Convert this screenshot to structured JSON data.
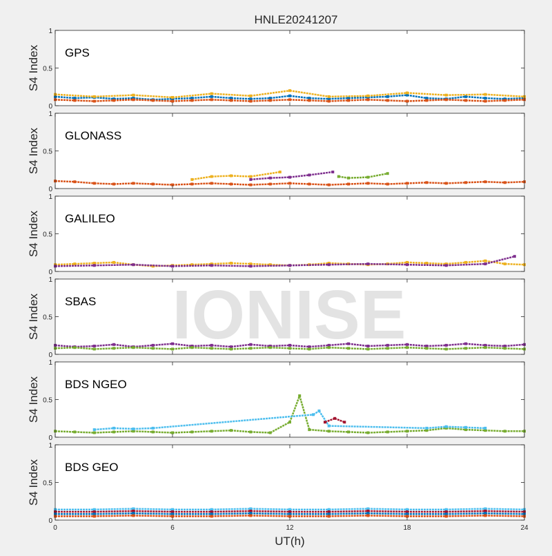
{
  "figure": {
    "title": "HNLE20241207",
    "watermark": "IONISE",
    "xlabel": "UT(h)",
    "ylabel": "S4 Index",
    "x_ticks": [
      "0",
      "6",
      "12",
      "18",
      "24"
    ],
    "y_ticks": [
      "0",
      "0.5",
      "1"
    ]
  },
  "colors": {
    "background": "#f0f0f0",
    "axes": "#ffffff",
    "series": [
      "#0072BD",
      "#D95319",
      "#EDB120",
      "#7E2F8E",
      "#77AC30",
      "#4DBEEE",
      "#A2142F"
    ]
  },
  "chart_data": [
    {
      "type": "scatter",
      "panel_label": "GPS",
      "xlim": [
        0,
        24
      ],
      "ylim": [
        0,
        1
      ],
      "series": [
        {
          "x": [
            0,
            1,
            2,
            3,
            4,
            5,
            6,
            7,
            8,
            9,
            10,
            11,
            12,
            13,
            14,
            15,
            16,
            17,
            18,
            19,
            20,
            21,
            22,
            23,
            24
          ],
          "y": [
            0.12,
            0.1,
            0.11,
            0.09,
            0.1,
            0.08,
            0.09,
            0.1,
            0.12,
            0.1,
            0.09,
            0.1,
            0.13,
            0.1,
            0.09,
            0.1,
            0.11,
            0.12,
            0.14,
            0.1,
            0.09,
            0.12,
            0.1,
            0.09,
            0.1
          ]
        },
        {
          "x": [
            0,
            1,
            2,
            3,
            4,
            5,
            6,
            7,
            8,
            9,
            10,
            11,
            12,
            13,
            14,
            15,
            16,
            17,
            18,
            19,
            20,
            21,
            22,
            23,
            24
          ],
          "y": [
            0.08,
            0.07,
            0.06,
            0.07,
            0.08,
            0.07,
            0.06,
            0.07,
            0.08,
            0.07,
            0.06,
            0.07,
            0.08,
            0.07,
            0.06,
            0.07,
            0.08,
            0.07,
            0.06,
            0.07,
            0.08,
            0.07,
            0.06,
            0.07,
            0.08
          ]
        },
        {
          "x": [
            0,
            2,
            4,
            6,
            8,
            10,
            12,
            14,
            16,
            18,
            20,
            22,
            24
          ],
          "y": [
            0.15,
            0.12,
            0.14,
            0.11,
            0.16,
            0.13,
            0.2,
            0.12,
            0.13,
            0.17,
            0.14,
            0.15,
            0.12
          ]
        }
      ]
    },
    {
      "type": "scatter",
      "panel_label": "GLONASS",
      "xlim": [
        0,
        24
      ],
      "ylim": [
        0,
        1
      ],
      "series": [
        {
          "x": [
            0,
            1,
            2,
            3,
            4,
            5,
            6,
            7,
            8,
            9,
            10,
            11,
            12,
            13,
            14,
            15,
            16,
            17,
            18,
            19,
            20,
            21,
            22,
            23,
            24
          ],
          "y": [
            0.1,
            0.09,
            0.07,
            0.06,
            0.07,
            0.06,
            0.05,
            0.06,
            0.07,
            0.06,
            0.05,
            0.06,
            0.07,
            0.06,
            0.05,
            0.06,
            0.07,
            0.06,
            0.07,
            0.08,
            0.07,
            0.08,
            0.09,
            0.08,
            0.09
          ]
        },
        {
          "x": [
            7,
            8,
            9,
            10,
            11.5
          ],
          "y": [
            0.12,
            0.16,
            0.17,
            0.16,
            0.22
          ]
        },
        {
          "x": [
            10,
            11,
            12,
            13,
            14.2
          ],
          "y": [
            0.12,
            0.14,
            0.15,
            0.18,
            0.22
          ]
        },
        {
          "x": [
            14.5,
            15,
            16,
            17
          ],
          "y": [
            0.16,
            0.14,
            0.15,
            0.2
          ]
        }
      ]
    },
    {
      "type": "scatter",
      "panel_label": "GALILEO",
      "xlim": [
        0,
        24
      ],
      "ylim": [
        0,
        1
      ],
      "series": [
        {
          "x": [
            0,
            1,
            2,
            3,
            4,
            5,
            6,
            7,
            8,
            9,
            10,
            11,
            12,
            13,
            14,
            15,
            16,
            17,
            18,
            19,
            20,
            21,
            22,
            23,
            24
          ],
          "y": [
            0.09,
            0.1,
            0.11,
            0.12,
            0.09,
            0.07,
            0.08,
            0.09,
            0.1,
            0.11,
            0.1,
            0.09,
            0.08,
            0.09,
            0.11,
            0.1,
            0.09,
            0.1,
            0.12,
            0.11,
            0.1,
            0.12,
            0.14,
            0.1,
            0.09
          ]
        },
        {
          "x": [
            0,
            2,
            4,
            6,
            8,
            10,
            12,
            14,
            16,
            18,
            20,
            22,
            23.5
          ],
          "y": [
            0.07,
            0.08,
            0.09,
            0.07,
            0.08,
            0.07,
            0.08,
            0.09,
            0.1,
            0.09,
            0.08,
            0.1,
            0.2
          ]
        }
      ]
    },
    {
      "type": "scatter",
      "panel_label": "SBAS",
      "xlim": [
        0,
        24
      ],
      "ylim": [
        0,
        1
      ],
      "series": [
        {
          "x": [
            0,
            1,
            2,
            3,
            4,
            5,
            6,
            7,
            8,
            9,
            10,
            11,
            12,
            13,
            14,
            15,
            16,
            17,
            18,
            19,
            20,
            21,
            22,
            23,
            24
          ],
          "y": [
            0.12,
            0.1,
            0.11,
            0.13,
            0.1,
            0.12,
            0.14,
            0.11,
            0.12,
            0.1,
            0.13,
            0.11,
            0.12,
            0.1,
            0.12,
            0.14,
            0.11,
            0.12,
            0.13,
            0.11,
            0.12,
            0.14,
            0.12,
            0.11,
            0.13
          ]
        },
        {
          "x": [
            0,
            1,
            2,
            3,
            4,
            5,
            6,
            7,
            8,
            9,
            10,
            11,
            12,
            13,
            14,
            15,
            16,
            17,
            18,
            19,
            20,
            21,
            22,
            23,
            24
          ],
          "y": [
            0.08,
            0.09,
            0.07,
            0.08,
            0.09,
            0.08,
            0.07,
            0.09,
            0.08,
            0.07,
            0.08,
            0.09,
            0.08,
            0.07,
            0.09,
            0.08,
            0.07,
            0.08,
            0.09,
            0.08,
            0.07,
            0.08,
            0.09,
            0.08,
            0.07
          ]
        }
      ]
    },
    {
      "type": "scatter",
      "panel_label": "BDS NGEO",
      "xlim": [
        0,
        24
      ],
      "ylim": [
        0,
        1
      ],
      "series": [
        {
          "x": [
            0,
            1,
            2,
            3,
            4,
            5,
            6,
            7,
            8,
            9,
            10,
            11,
            12,
            12.5,
            13,
            14,
            15,
            16,
            17,
            18,
            19,
            20,
            21,
            22,
            23,
            24
          ],
          "y": [
            0.08,
            0.07,
            0.06,
            0.07,
            0.08,
            0.07,
            0.06,
            0.07,
            0.08,
            0.09,
            0.07,
            0.06,
            0.2,
            0.55,
            0.1,
            0.08,
            0.07,
            0.06,
            0.07,
            0.08,
            0.09,
            0.12,
            0.1,
            0.09,
            0.08,
            0.08
          ]
        },
        {
          "x": [
            2,
            3,
            4,
            5,
            13.2,
            13.5,
            14,
            19,
            20,
            21,
            22
          ],
          "y": [
            0.1,
            0.12,
            0.11,
            0.12,
            0.3,
            0.35,
            0.15,
            0.12,
            0.14,
            0.13,
            0.12
          ]
        },
        {
          "x": [
            13.8,
            14.3,
            14.8
          ],
          "y": [
            0.2,
            0.25,
            0.2
          ]
        }
      ]
    },
    {
      "type": "scatter",
      "panel_label": "BDS GEO",
      "xlim": [
        0,
        24
      ],
      "ylim": [
        0,
        1
      ],
      "series": [
        {
          "x": [
            0,
            2,
            4,
            6,
            8,
            10,
            12,
            14,
            16,
            18,
            20,
            22,
            24
          ],
          "y": [
            0.14,
            0.14,
            0.15,
            0.14,
            0.14,
            0.15,
            0.14,
            0.14,
            0.15,
            0.14,
            0.14,
            0.15,
            0.14
          ]
        },
        {
          "x": [
            0,
            2,
            4,
            6,
            8,
            10,
            12,
            14,
            16,
            18,
            20,
            22,
            24
          ],
          "y": [
            0.11,
            0.11,
            0.12,
            0.11,
            0.11,
            0.12,
            0.11,
            0.11,
            0.12,
            0.11,
            0.11,
            0.12,
            0.11
          ]
        },
        {
          "x": [
            0,
            2,
            4,
            6,
            8,
            10,
            12,
            14,
            16,
            18,
            20,
            22,
            24
          ],
          "y": [
            0.08,
            0.08,
            0.09,
            0.08,
            0.08,
            0.09,
            0.08,
            0.08,
            0.09,
            0.08,
            0.08,
            0.09,
            0.08
          ]
        },
        {
          "x": [
            0,
            2,
            4,
            6,
            8,
            10,
            12,
            14,
            16,
            18,
            20,
            22,
            24
          ],
          "y": [
            0.05,
            0.05,
            0.06,
            0.05,
            0.05,
            0.06,
            0.05,
            0.05,
            0.06,
            0.05,
            0.05,
            0.06,
            0.05
          ]
        }
      ]
    }
  ]
}
